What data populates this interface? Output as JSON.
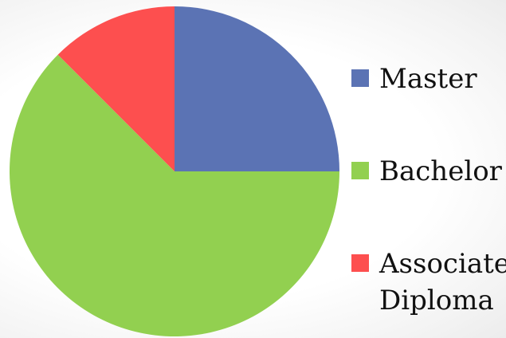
{
  "chart_data": {
    "type": "pie",
    "title": "",
    "categories": [
      "Master",
      "Bachelor",
      "Associate Diploma"
    ],
    "values": [
      25,
      62.5,
      12.5
    ],
    "colors": [
      "#5b73b4",
      "#92d050",
      "#fd4f4f"
    ],
    "start_angle_deg": 0,
    "direction": "clockwise",
    "legend": {
      "placement": "right",
      "entries": [
        {
          "lines": [
            "Master"
          ]
        },
        {
          "lines": [
            "Bachelor"
          ]
        },
        {
          "lines": [
            "Associate",
            "Diploma"
          ]
        }
      ]
    }
  }
}
